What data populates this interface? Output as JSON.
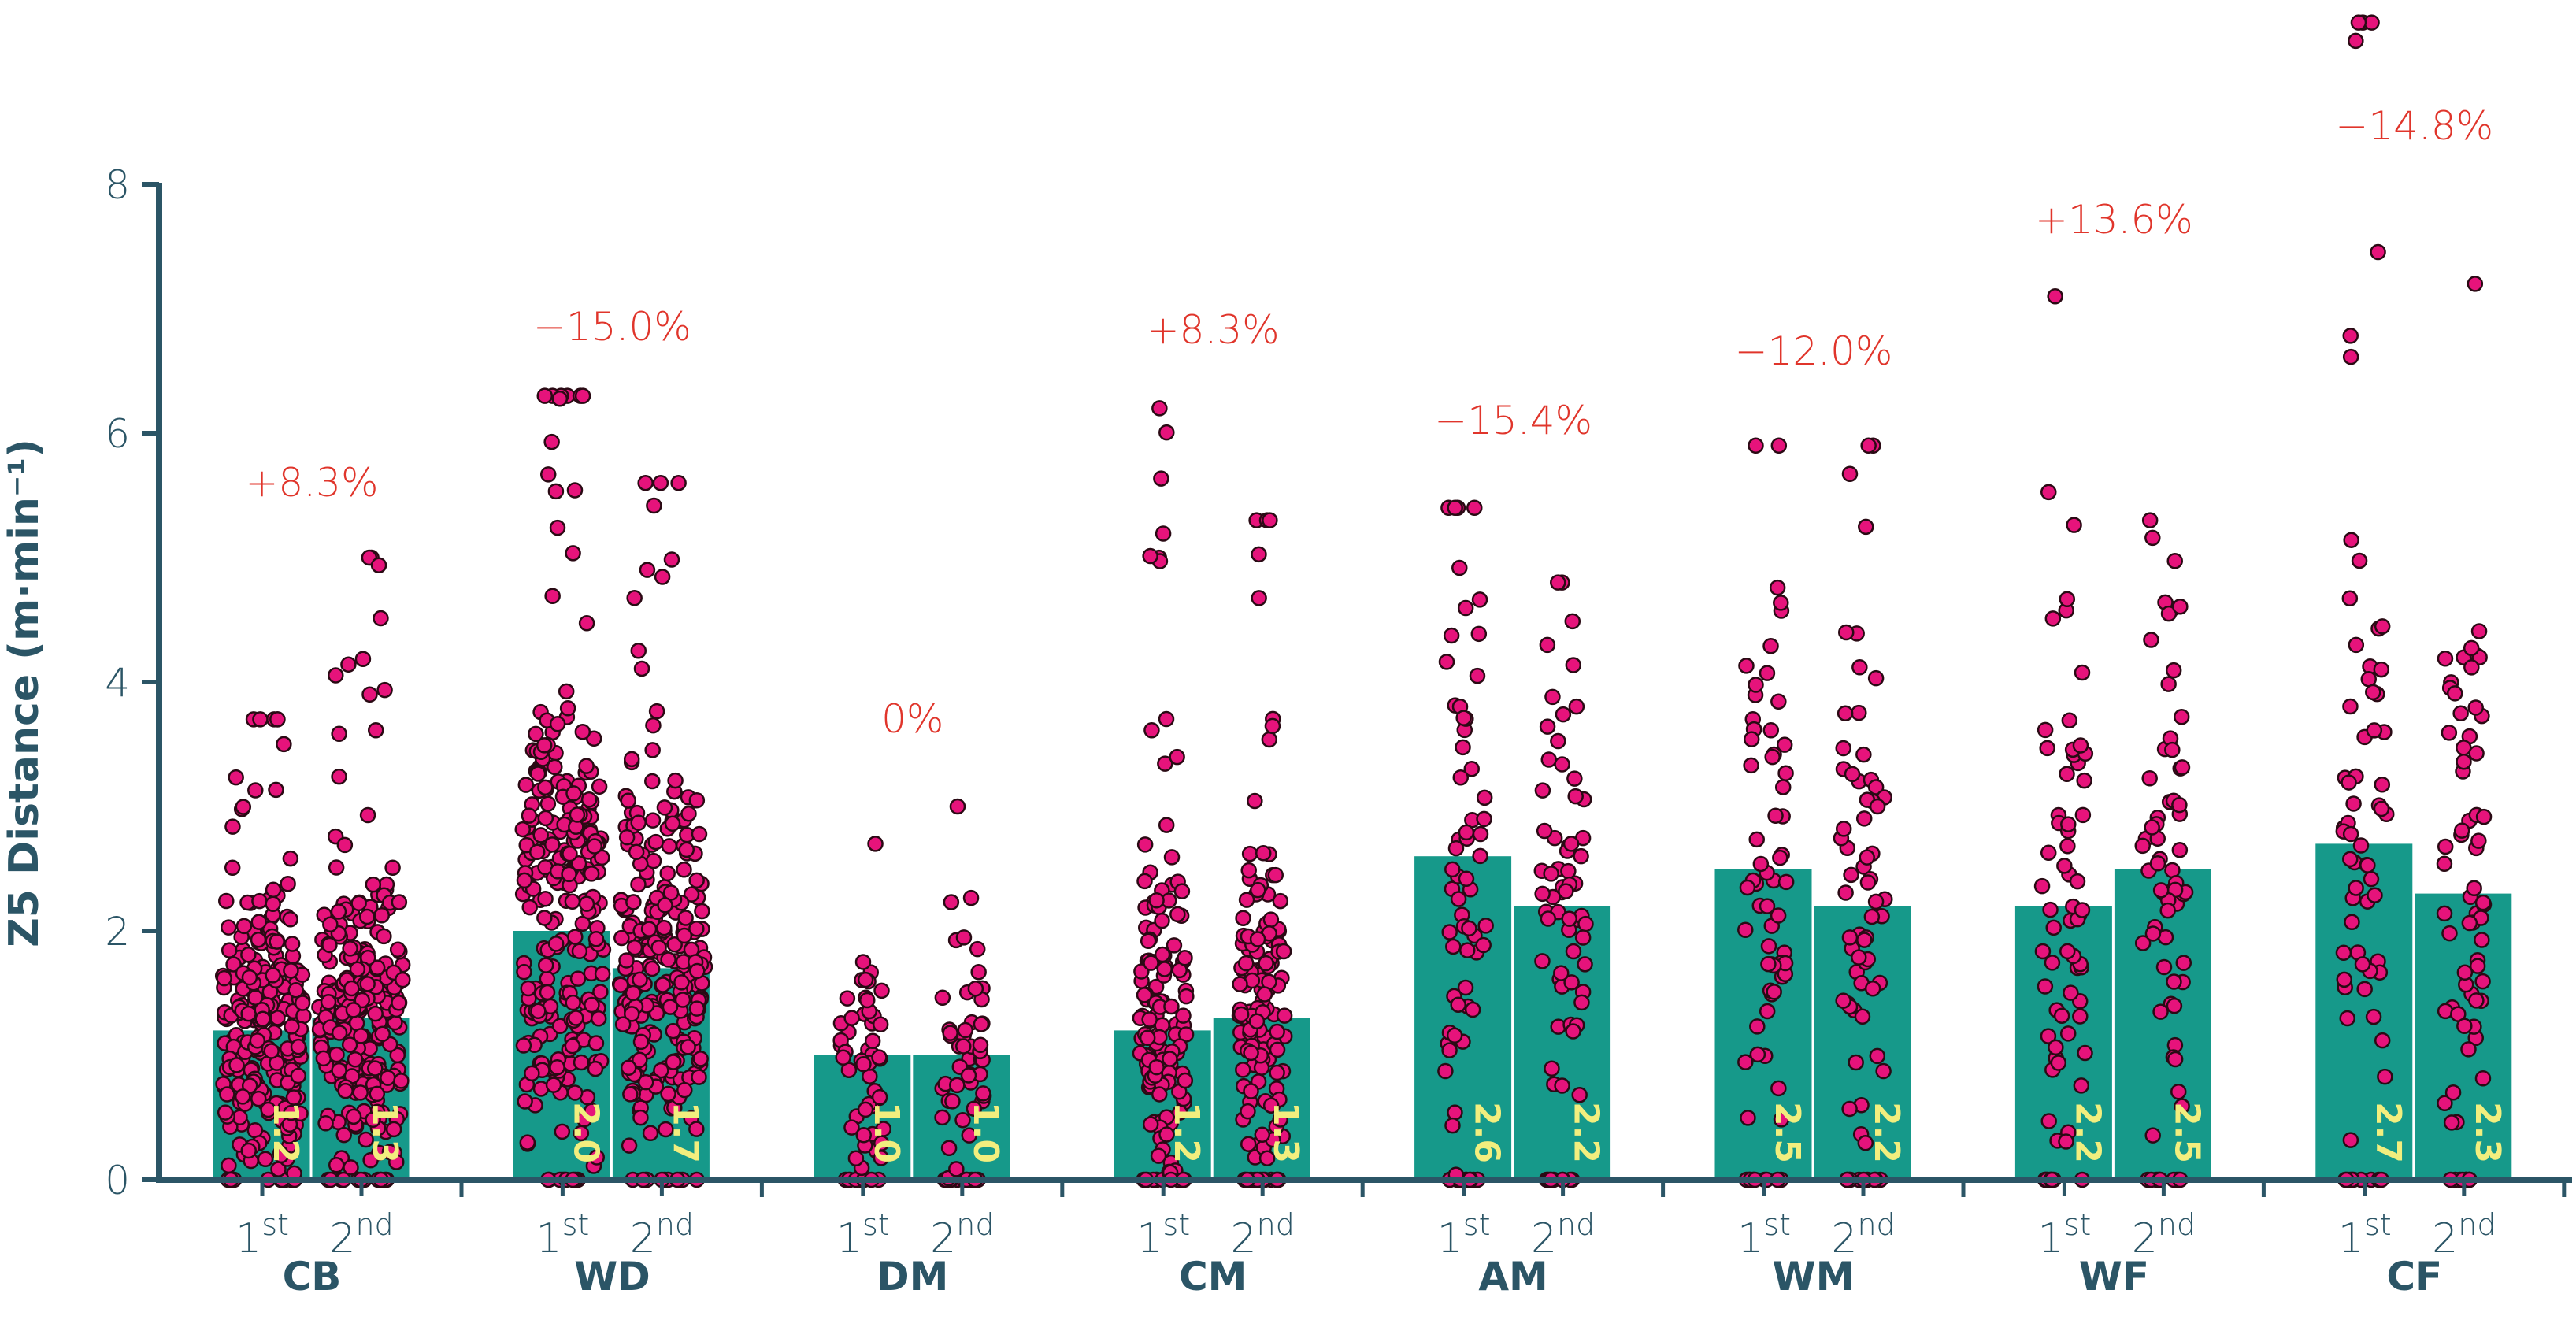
{
  "chart_data": {
    "type": "bar",
    "title": "",
    "ylabel": "Z5 Distance (m·min⁻¹)",
    "xlabel": "",
    "ylim": [
      0,
      8
    ],
    "yticks": [
      "0",
      "2",
      "4",
      "6",
      "8"
    ],
    "grid": false,
    "categories": [
      "CB",
      "WD",
      "DM",
      "CM",
      "AM",
      "WM",
      "WF",
      "CF"
    ],
    "halves": [
      "1st",
      "2nd"
    ],
    "series": [
      {
        "name": "1st",
        "values": [
          1.2,
          2.0,
          1.0,
          1.2,
          2.6,
          2.5,
          2.2,
          2.7
        ],
        "labels": [
          "1.2",
          "2.0",
          "1.0",
          "1.2",
          "2.6",
          "2.5",
          "2.2",
          "2.7"
        ]
      },
      {
        "name": "2nd",
        "values": [
          1.3,
          1.7,
          1.0,
          1.3,
          2.2,
          2.2,
          2.5,
          2.3
        ],
        "labels": [
          "1.3",
          "1.7",
          "1.0",
          "1.3",
          "2.2",
          "2.2",
          "2.5",
          "2.3"
        ]
      }
    ],
    "percent_change": [
      "+8.3%",
      "−15.0%",
      "0%",
      "+8.3%",
      "−15.4%",
      "−12.0%",
      "+13.6%",
      "−14.8%"
    ],
    "approx_max_individual": [
      [
        3.7,
        5.0
      ],
      [
        6.3,
        5.6
      ],
      [
        2.7,
        3.0
      ],
      [
        6.2,
        5.3
      ],
      [
        5.4,
        4.8
      ],
      [
        5.9,
        5.9
      ],
      [
        7.1,
        5.3
      ],
      [
        9.3,
        7.2
      ]
    ],
    "colors": {
      "bar": "#16998a",
      "dot": "#e6137b",
      "dot_stroke": "#2a0a14",
      "axis": "#2b5566",
      "annotation": "#e0352b",
      "bar_label": "#f2ee7e"
    }
  }
}
